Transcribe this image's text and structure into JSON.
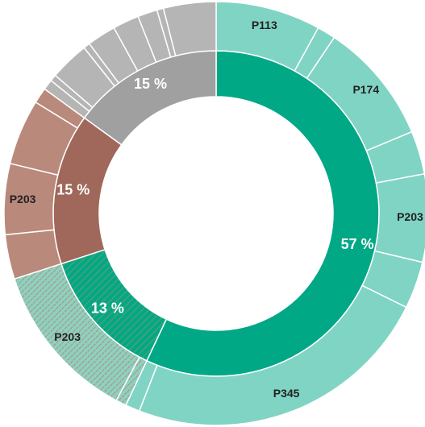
{
  "chart_data": {
    "type": "sunburst",
    "inner": {
      "values": [
        57,
        13,
        15,
        15
      ],
      "value_labels": [
        "57 %",
        "13 %",
        "15 %",
        "15 %"
      ],
      "colors": [
        "#00a886",
        "#00a886",
        "#a0685a",
        "#a0a0a0"
      ],
      "hatched": [
        false,
        true,
        false,
        false
      ]
    },
    "outer": {
      "values": [
        [
          8.0,
          1.4,
          9.3,
          3.3,
          6.7,
          3.6,
          23.6,
          1.1
        ],
        [
          0.8,
          12.2
        ],
        [
          3.4,
          5.4,
          5.0,
          1.2
        ],
        [
          0.8,
          0.5,
          3.0,
          0.5,
          2.2,
          2.0,
          1.5,
          0.5,
          4.0
        ]
      ],
      "labels": [
        [
          "P113",
          null,
          "P174",
          null,
          "P203",
          null,
          "P345",
          null
        ],
        [
          null,
          "P203"
        ],
        [
          null,
          "P203",
          null,
          null
        ],
        [
          null,
          null,
          null,
          null,
          null,
          null,
          null,
          null,
          null
        ]
      ],
      "colors": [
        "#80d4c4",
        "#80d4c4",
        "#b9897c",
        "#b5b5b5"
      ]
    }
  }
}
